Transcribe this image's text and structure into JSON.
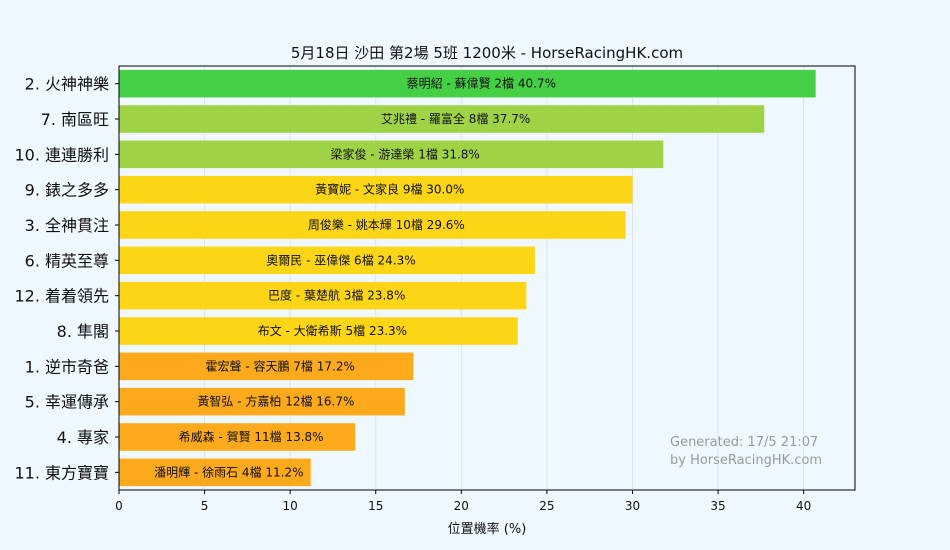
{
  "chart_data": {
    "type": "bar",
    "orientation": "horizontal",
    "title": "5月18日  沙田  第2場  5班  1200米 - HorseRacingHK.com",
    "xlabel": "位置機率 (%)",
    "ylabel": "",
    "xlim": [
      0,
      43
    ],
    "xticks": [
      0,
      5,
      10,
      15,
      20,
      25,
      30,
      35,
      40
    ],
    "grid": "vertical",
    "categories": [
      "2. 火神神樂",
      "7. 南區旺",
      "10. 連連勝利",
      "9. 錶之多多",
      "3. 全神貫注",
      "6. 精英至尊",
      "12. 着着領先",
      "8. 隼閣",
      "1. 逆市奇爸",
      "5. 幸運傳承",
      "4. 專家",
      "11. 東方寶寶"
    ],
    "values": [
      40.7,
      37.7,
      31.8,
      30.0,
      29.6,
      24.3,
      23.8,
      23.3,
      17.2,
      16.7,
      13.8,
      11.2
    ],
    "bar_labels": [
      "蔡明紹 - 蘇偉賢 2檔  40.7%",
      "艾兆禮 - 羅富全 8檔  37.7%",
      "梁家俊 - 游達榮 1檔  31.8%",
      "黃寶妮 - 文家良 9檔  30.0%",
      "周俊樂 - 姚本輝 10檔  29.6%",
      "奧爾民 - 巫偉傑 6檔  24.3%",
      "巴度 - 葉楚航 3檔  23.8%",
      "布文 - 大衛希斯 5檔  23.3%",
      "霍宏聲 - 容天鵬 7檔  17.2%",
      "黃智弘 - 方嘉柏 12檔  16.7%",
      "希威森 - 賀賢 11檔  13.8%",
      "潘明輝 - 徐雨石 4檔  11.2%"
    ],
    "colors": [
      "#44cf44",
      "#9fd244",
      "#9fd244",
      "#fcd517",
      "#fcd517",
      "#fcd517",
      "#fcd517",
      "#fcd517",
      "#fca91c",
      "#fca91c",
      "#fca91c",
      "#fca91c"
    ]
  },
  "watermark": {
    "line1": "Generated: 17/5 21:07",
    "line2": "by HorseRacingHK.com"
  },
  "theme": {
    "background": "#f0f8ff",
    "plot_background": "#f0f8ff",
    "grid_color": "#dde3ea",
    "axis_color": "#000000"
  }
}
